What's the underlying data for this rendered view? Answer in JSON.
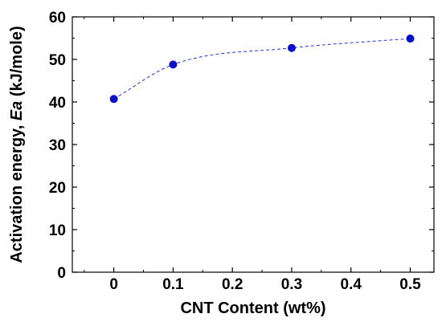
{
  "chart_data": {
    "type": "scatter",
    "title": "",
    "xlabel": "CNT Content (wt%)",
    "ylabel_prefix": "Activation energy, ",
    "ylabel_italic": "Ea",
    "ylabel_suffix": " (kJ/mole)",
    "xlim": [
      -0.07,
      0.54
    ],
    "ylim": [
      0,
      60
    ],
    "x_ticks": [
      0,
      0.1,
      0.2,
      0.3,
      0.4,
      0.5
    ],
    "x_tick_labels": [
      "0",
      "0.1",
      "0.2",
      "0.3",
      "0.4",
      "0.5"
    ],
    "y_ticks": [
      0,
      10,
      20,
      30,
      40,
      50,
      60
    ],
    "y_tick_labels": [
      "0",
      "10",
      "20",
      "30",
      "40",
      "50",
      "60"
    ],
    "grid": false,
    "series": [
      {
        "x": [
          0,
          0.1,
          0.3,
          0.5
        ],
        "y": [
          40.7,
          48.8,
          52.7,
          54.9
        ],
        "marker_color": "#0a10c8",
        "trend_line": "dashed",
        "line_color": "#2233cc"
      }
    ]
  }
}
